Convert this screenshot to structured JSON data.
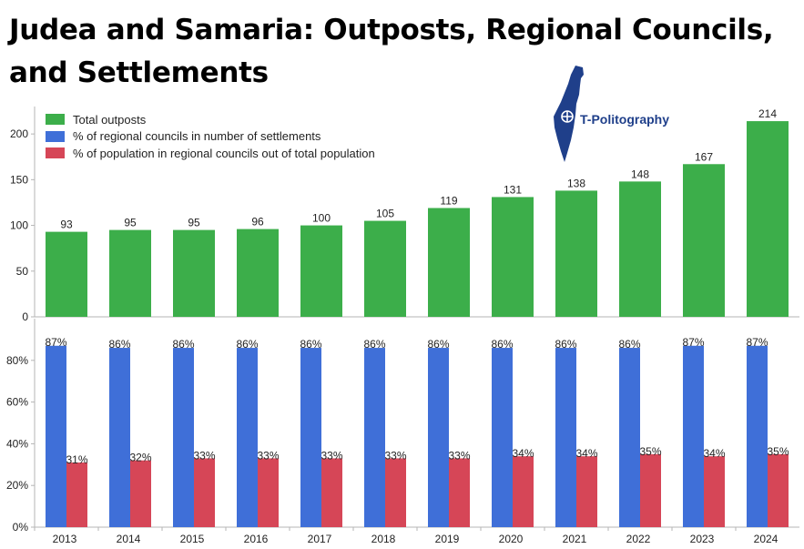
{
  "title": "Judea and Samaria: Outposts, Regional Councils, and Settlements",
  "logo": {
    "text": "T-Politography",
    "icon": "israel-map-icon"
  },
  "colors": {
    "outposts": "#3cae4a",
    "councils": "#3f6fd8",
    "population": "#d64657",
    "axis": "#b5b5b5",
    "text": "#222222"
  },
  "chart_data": [
    {
      "type": "bar",
      "categories": [
        "2013",
        "2014",
        "2015",
        "2016",
        "2017",
        "2018",
        "2019",
        "2020",
        "2021",
        "2022",
        "2023",
        "2024"
      ],
      "series": [
        {
          "name": "Total outposts",
          "values": [
            93,
            95,
            95,
            96,
            100,
            105,
            119,
            131,
            138,
            148,
            167,
            214
          ]
        }
      ],
      "ylim": [
        0,
        230
      ],
      "yticks": [
        0,
        50,
        100,
        150,
        200
      ],
      "grid": false,
      "data_labels": true
    },
    {
      "type": "bar",
      "categories": [
        "2013",
        "2014",
        "2015",
        "2016",
        "2017",
        "2018",
        "2019",
        "2020",
        "2021",
        "2022",
        "2023",
        "2024"
      ],
      "series": [
        {
          "name": "% of regional councils in number of settlements",
          "values": [
            87,
            86,
            86,
            86,
            86,
            86,
            86,
            86,
            86,
            86,
            87,
            87
          ]
        },
        {
          "name": "% of population in regional councils out of total population",
          "values": [
            31,
            32,
            33,
            33,
            33,
            33,
            33,
            34,
            34,
            35,
            34,
            35
          ]
        }
      ],
      "ylim": [
        0,
        100
      ],
      "yticks": [
        0,
        20,
        40,
        60,
        80
      ],
      "ytick_suffix": "%",
      "grid": false,
      "data_labels": true,
      "legend_position": "top-left"
    }
  ]
}
